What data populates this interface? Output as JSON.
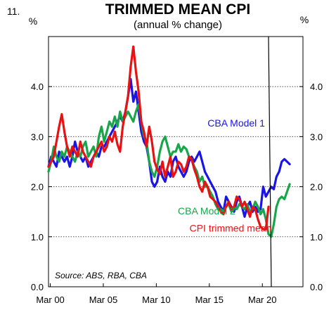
{
  "figure_number": "11.",
  "chart_data": {
    "type": "line",
    "title": "TRIMMED MEAN CPI",
    "subtitle": "(annual % change)",
    "y_unit_left": "%",
    "y_unit_right": "%",
    "ylim": [
      0,
      5
    ],
    "yticks": [
      0,
      1,
      2,
      3,
      4
    ],
    "ytick_labels": [
      "0.0",
      "1.0",
      "2.0",
      "3.0",
      "4.0"
    ],
    "xlim": [
      2000.0,
      2024.0
    ],
    "xticks": [
      2000.17,
      2005.17,
      2010.17,
      2015.17,
      2020.17
    ],
    "xtick_labels": [
      "Mar 00",
      "Mar 05",
      "Mar 10",
      "Mar 15",
      "Mar 20"
    ],
    "grid": "horizontal dotted",
    "vertical_marker_x": 2020.75,
    "source": "Source: ABS, RBA, CBA",
    "series": [
      {
        "name": "CBA Model 1",
        "color": "#1a14e6",
        "x": [
          2000.0,
          2000.25,
          2000.5,
          2000.75,
          2001.0,
          2001.25,
          2001.5,
          2001.75,
          2002.0,
          2002.25,
          2002.5,
          2002.75,
          2003.0,
          2003.25,
          2003.5,
          2003.75,
          2004.0,
          2004.25,
          2004.5,
          2004.75,
          2005.0,
          2005.25,
          2005.5,
          2005.75,
          2006.0,
          2006.25,
          2006.5,
          2006.75,
          2007.0,
          2007.25,
          2007.5,
          2007.75,
          2008.0,
          2008.25,
          2008.5,
          2008.75,
          2009.0,
          2009.25,
          2009.5,
          2009.75,
          2010.0,
          2010.25,
          2010.5,
          2010.75,
          2011.0,
          2011.25,
          2011.5,
          2011.75,
          2012.0,
          2012.25,
          2012.5,
          2012.75,
          2013.0,
          2013.25,
          2013.5,
          2013.75,
          2014.0,
          2014.25,
          2014.5,
          2014.75,
          2015.0,
          2015.25,
          2015.5,
          2015.75,
          2016.0,
          2016.25,
          2016.5,
          2016.75,
          2017.0,
          2017.25,
          2017.5,
          2017.75,
          2018.0,
          2018.25,
          2018.5,
          2018.75,
          2019.0,
          2019.25,
          2019.5,
          2019.75,
          2020.0,
          2020.25,
          2020.5,
          2020.75,
          2021.0,
          2021.25,
          2021.5,
          2021.75,
          2022.0,
          2022.25,
          2022.5,
          2022.75
        ],
        "y": [
          2.4,
          2.6,
          2.5,
          2.4,
          2.7,
          2.6,
          2.5,
          2.6,
          2.4,
          2.6,
          2.9,
          2.7,
          2.6,
          2.5,
          2.6,
          2.4,
          2.5,
          2.6,
          2.7,
          2.6,
          2.8,
          2.8,
          2.9,
          3.0,
          3.1,
          3.2,
          3.3,
          3.4,
          3.3,
          3.5,
          3.8,
          4.15,
          3.7,
          3.9,
          3.5,
          3.1,
          2.9,
          2.8,
          2.5,
          2.1,
          2.0,
          2.1,
          2.4,
          2.2,
          2.1,
          2.3,
          2.2,
          2.5,
          2.6,
          2.4,
          2.3,
          2.2,
          2.3,
          2.5,
          2.6,
          2.5,
          2.6,
          2.7,
          2.5,
          2.3,
          2.2,
          2.1,
          2.0,
          1.9,
          1.7,
          1.6,
          1.5,
          1.8,
          1.7,
          1.6,
          1.5,
          1.7,
          1.8,
          1.6,
          1.4,
          1.6,
          1.7,
          1.5,
          1.6,
          1.5,
          1.55,
          2.0,
          1.8,
          1.9,
          2.0,
          1.95,
          2.2,
          2.3,
          2.5,
          2.55,
          2.5,
          2.45
        ]
      },
      {
        "name": "CBA Model 2",
        "color": "#17a64a",
        "x": [
          2000.0,
          2000.25,
          2000.5,
          2000.75,
          2001.0,
          2001.25,
          2001.5,
          2001.75,
          2002.0,
          2002.25,
          2002.5,
          2002.75,
          2003.0,
          2003.25,
          2003.5,
          2003.75,
          2004.0,
          2004.25,
          2004.5,
          2004.75,
          2005.0,
          2005.25,
          2005.5,
          2005.75,
          2006.0,
          2006.25,
          2006.5,
          2006.75,
          2007.0,
          2007.25,
          2007.5,
          2007.75,
          2008.0,
          2008.25,
          2008.5,
          2008.75,
          2009.0,
          2009.25,
          2009.5,
          2009.75,
          2010.0,
          2010.25,
          2010.5,
          2010.75,
          2011.0,
          2011.25,
          2011.5,
          2011.75,
          2012.0,
          2012.25,
          2012.5,
          2012.75,
          2013.0,
          2013.25,
          2013.5,
          2013.75,
          2014.0,
          2014.25,
          2014.5,
          2014.75,
          2015.0,
          2015.25,
          2015.5,
          2015.75,
          2016.0,
          2016.25,
          2016.5,
          2016.75,
          2017.0,
          2017.25,
          2017.5,
          2017.75,
          2018.0,
          2018.25,
          2018.5,
          2018.75,
          2019.0,
          2019.25,
          2019.5,
          2019.75,
          2020.0,
          2020.25,
          2020.5,
          2020.75,
          2021.0,
          2021.25,
          2021.5,
          2021.75,
          2022.0,
          2022.25,
          2022.5,
          2022.75
        ],
        "y": [
          2.3,
          2.5,
          2.8,
          2.6,
          2.5,
          2.7,
          2.6,
          2.8,
          2.7,
          2.6,
          2.5,
          2.7,
          2.6,
          2.8,
          2.9,
          2.6,
          2.7,
          2.8,
          2.6,
          3.0,
          3.2,
          2.9,
          3.1,
          3.3,
          3.2,
          3.4,
          3.2,
          3.5,
          3.3,
          3.4,
          3.5,
          3.4,
          3.3,
          3.5,
          3.65,
          3.3,
          3.0,
          2.9,
          2.5,
          2.3,
          2.2,
          2.4,
          2.7,
          2.9,
          3.0,
          2.8,
          2.6,
          2.7,
          2.7,
          2.85,
          2.7,
          2.8,
          2.75,
          2.6,
          2.55,
          2.4,
          2.3,
          2.1,
          2.2,
          2.0,
          2.0,
          1.9,
          1.8,
          1.65,
          1.55,
          1.55,
          1.5,
          1.6,
          1.65,
          1.5,
          1.6,
          1.55,
          1.65,
          1.6,
          1.55,
          1.65,
          1.5,
          1.55,
          1.7,
          1.6,
          1.45,
          1.55,
          1.35,
          1.05,
          1.0,
          1.25,
          1.6,
          1.75,
          1.8,
          1.75,
          1.9,
          2.05
        ]
      },
      {
        "name": "CPI trimmed mean",
        "color": "#e81212",
        "x": [
          2000.0,
          2000.25,
          2000.5,
          2000.75,
          2001.0,
          2001.25,
          2001.5,
          2001.75,
          2002.0,
          2002.25,
          2002.5,
          2002.75,
          2003.0,
          2003.25,
          2003.5,
          2003.75,
          2004.0,
          2004.25,
          2004.5,
          2004.75,
          2005.0,
          2005.25,
          2005.5,
          2005.75,
          2006.0,
          2006.25,
          2006.5,
          2006.75,
          2007.0,
          2007.25,
          2007.5,
          2007.75,
          2008.0,
          2008.25,
          2008.5,
          2008.75,
          2009.0,
          2009.25,
          2009.5,
          2009.75,
          2010.0,
          2010.25,
          2010.5,
          2010.75,
          2011.0,
          2011.25,
          2011.5,
          2011.75,
          2012.0,
          2012.25,
          2012.5,
          2012.75,
          2013.0,
          2013.25,
          2013.5,
          2013.75,
          2014.0,
          2014.25,
          2014.5,
          2014.75,
          2015.0,
          2015.25,
          2015.5,
          2015.75,
          2016.0,
          2016.25,
          2016.5,
          2016.75,
          2017.0,
          2017.25,
          2017.5,
          2017.75,
          2018.0,
          2018.25,
          2018.5,
          2018.75,
          2019.0,
          2019.25,
          2019.5,
          2019.75,
          2020.0,
          2020.25,
          2020.5,
          2020.75
        ],
        "y": [
          2.4,
          2.5,
          2.6,
          2.9,
          3.2,
          3.45,
          3.1,
          2.8,
          2.6,
          2.8,
          2.7,
          2.6,
          2.9,
          2.7,
          2.6,
          2.5,
          2.4,
          2.6,
          2.7,
          2.8,
          2.9,
          2.7,
          2.8,
          3.0,
          2.9,
          3.1,
          2.85,
          2.7,
          3.2,
          3.5,
          3.8,
          4.4,
          4.8,
          4.3,
          3.9,
          3.3,
          3.1,
          2.8,
          3.2,
          2.9,
          2.5,
          2.35,
          2.25,
          2.5,
          2.2,
          2.4,
          2.6,
          2.2,
          2.3,
          2.5,
          2.45,
          2.3,
          2.4,
          2.6,
          2.55,
          2.35,
          2.2,
          2.0,
          1.9,
          2.1,
          2.0,
          1.8,
          1.75,
          1.7,
          1.6,
          1.5,
          1.45,
          1.6,
          1.7,
          1.55,
          1.6,
          1.8,
          1.75,
          1.6,
          1.7,
          1.55,
          1.4,
          1.6,
          1.55,
          1.35,
          1.2,
          1.15,
          1.15,
          1.6
        ]
      }
    ],
    "labels": [
      {
        "series": 0,
        "text": "CBA Model 1",
        "x": 2015.0,
        "y": 3.2
      },
      {
        "series": 1,
        "text": "CBA Model 2",
        "x": 2012.2,
        "y": 1.45
      },
      {
        "series": 2,
        "text": "CPI trimmed mean",
        "x": 2013.3,
        "y": 1.1
      }
    ]
  }
}
